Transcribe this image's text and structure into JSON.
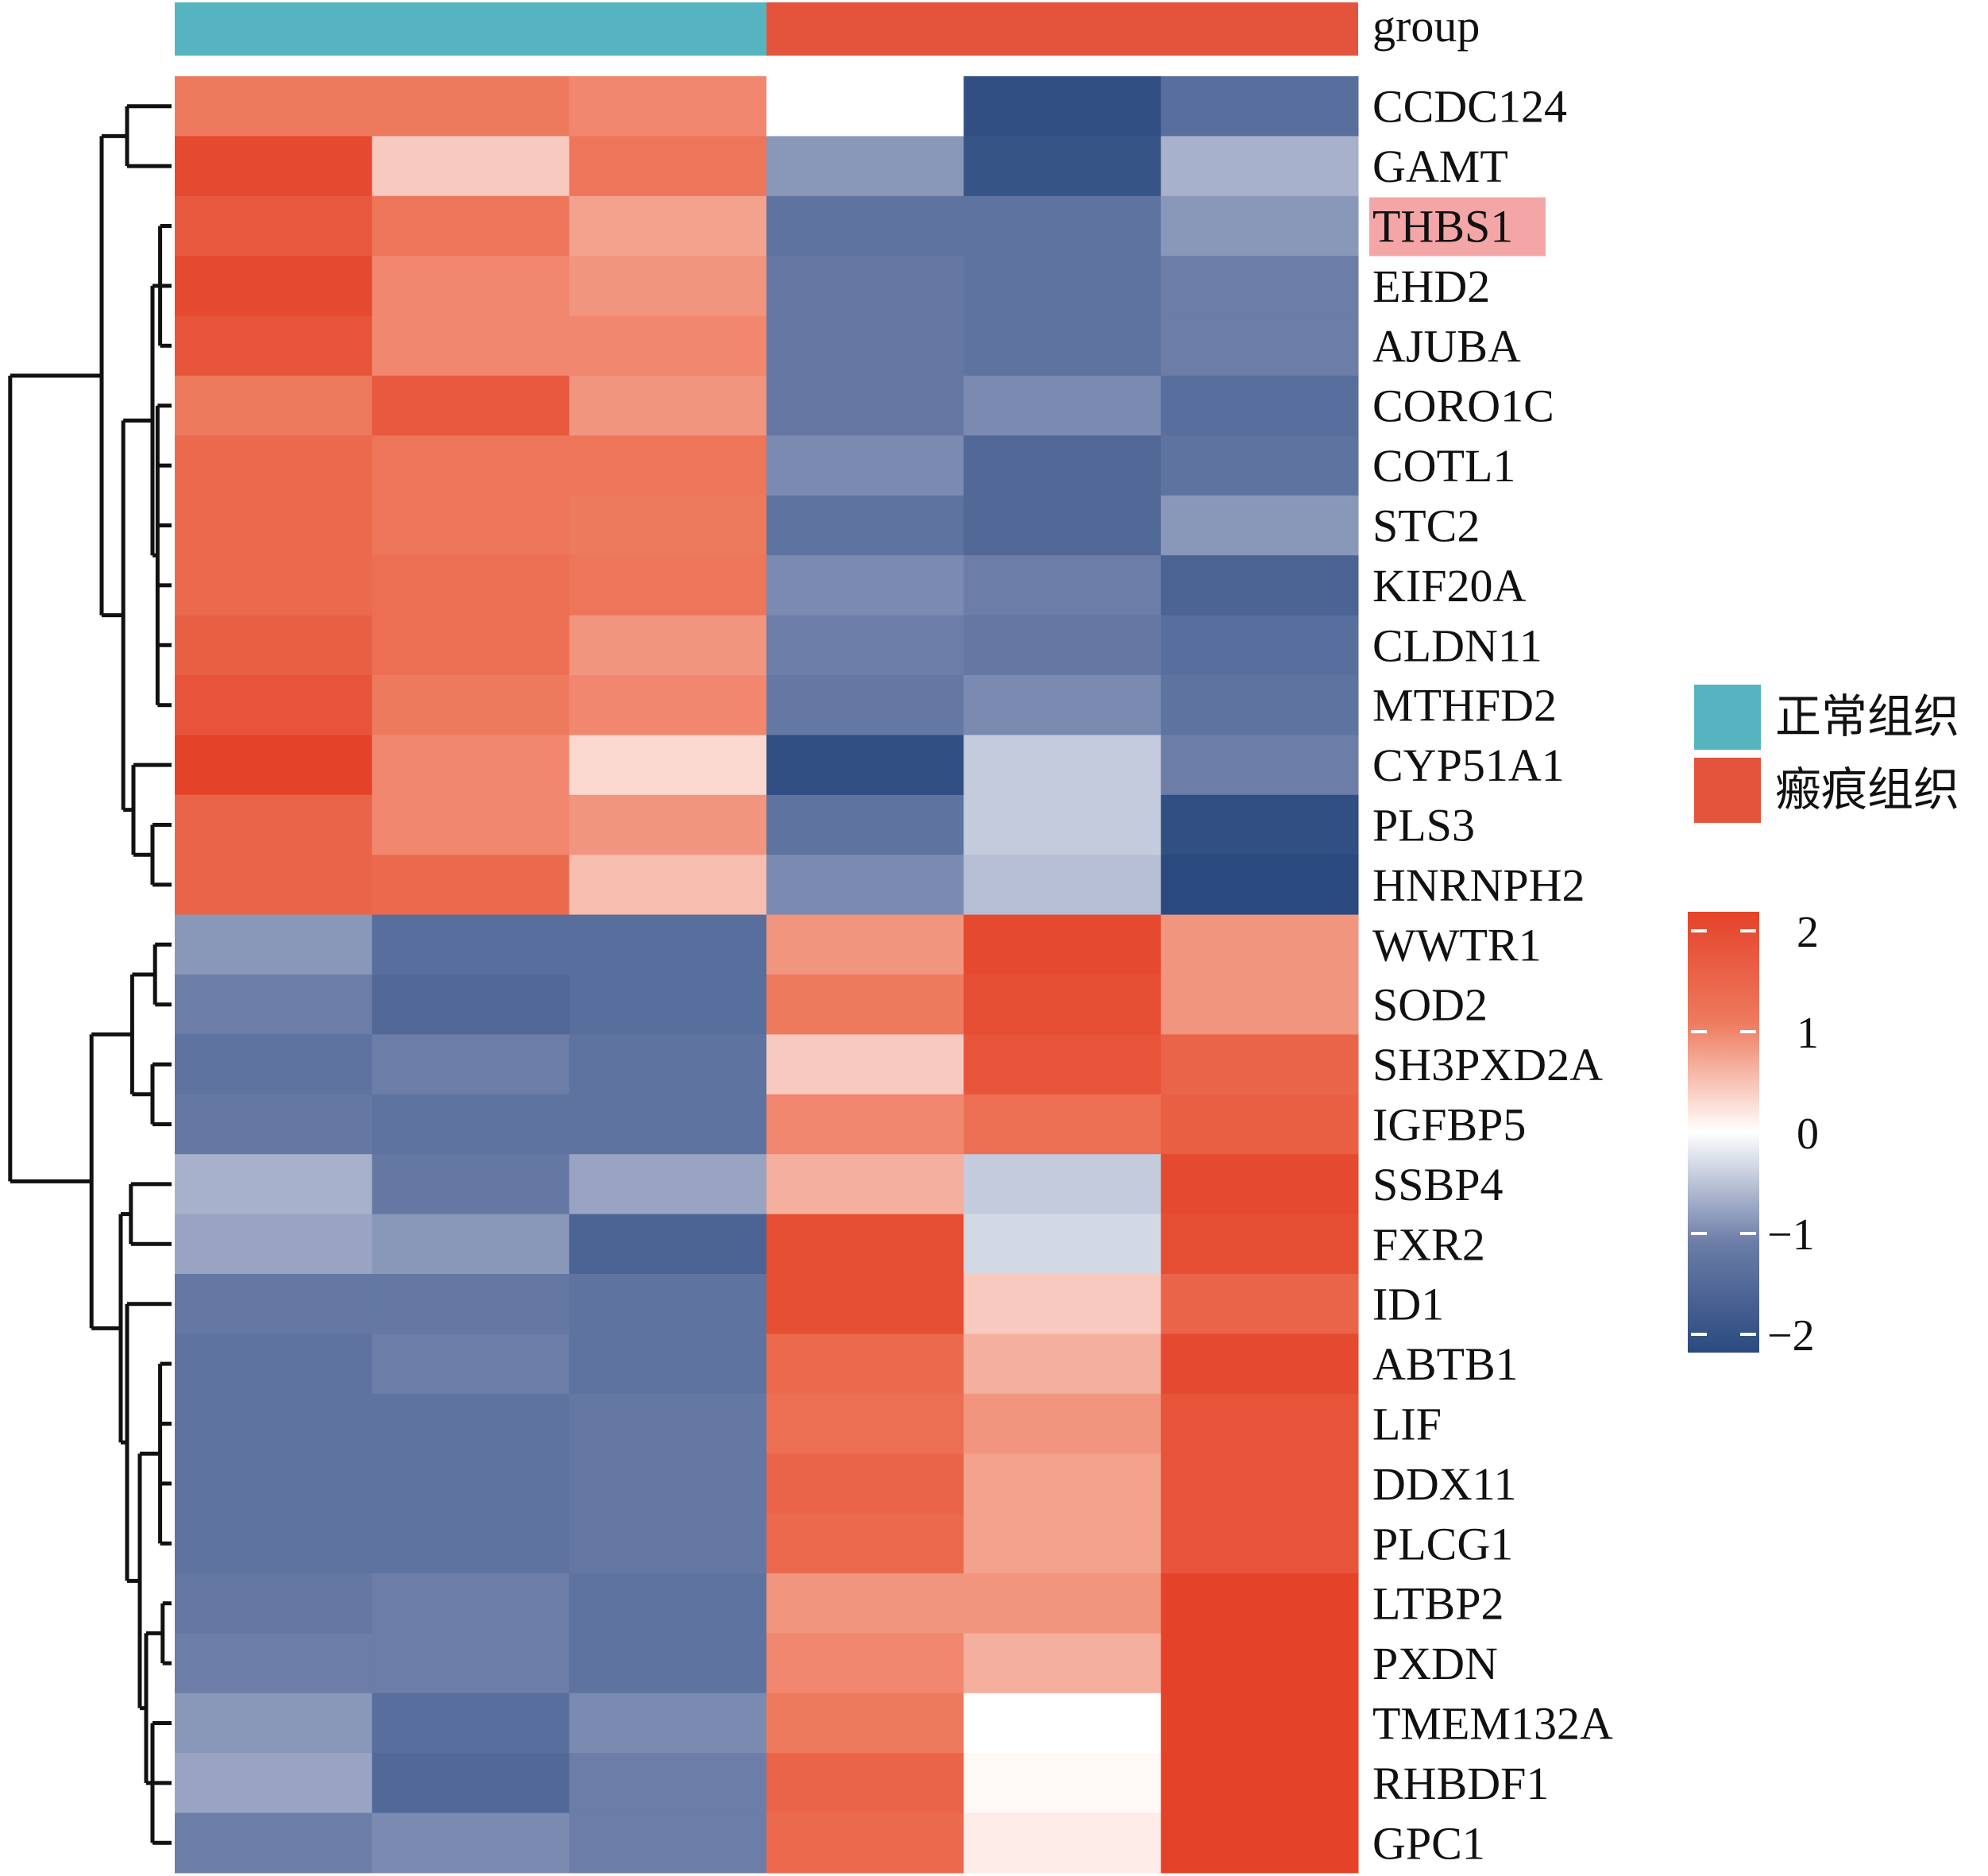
{
  "chart_data": {
    "type": "heatmap",
    "title": "",
    "annotation_label": "group",
    "groups": [
      {
        "name": "正常组织",
        "color": "#56B4C1",
        "samples": 3
      },
      {
        "name": "瘢痕组织",
        "color": "#E4533C",
        "samples": 3
      }
    ],
    "highlighted_gene": "THBS1",
    "highlight_color": "#F4A6A6",
    "color_scale": {
      "min": -2,
      "max": 2,
      "low": "#2A4A7F",
      "mid": "#FFFFFF",
      "high": "#E4432A",
      "ticks": [
        2,
        1,
        0,
        -1,
        -2
      ],
      "tick_labels": [
        "2",
        "1",
        "0",
        "−1",
        "−2"
      ]
    },
    "genes": [
      "CCDC124",
      "GAMT",
      "THBS1",
      "EHD2",
      "AJUBA",
      "CORO1C",
      "COTL1",
      "STC2",
      "KIF20A",
      "CLDN11",
      "MTHFD2",
      "CYP51A1",
      "PLS3",
      "HNRNPH2",
      "WWTR1",
      "SOD2",
      "SH3PXD2A",
      "IGFBP5",
      "SSBP4",
      "FXR2",
      "ID1",
      "ABTB1",
      "LIF",
      "DDX11",
      "PLCG1",
      "LTBP2",
      "PXDN",
      "TMEM132A",
      "RHBDF1",
      "GPC1"
    ],
    "values": [
      [
        1.0,
        1.0,
        0.9,
        0.0,
        -1.9,
        -1.3
      ],
      [
        1.9,
        0.4,
        1.1,
        -0.8,
        -1.8,
        -0.6
      ],
      [
        1.6,
        1.1,
        0.7,
        -1.2,
        -1.2,
        -0.8
      ],
      [
        1.9,
        0.9,
        0.8,
        -1.1,
        -1.2,
        -1.0
      ],
      [
        1.7,
        0.9,
        0.9,
        -1.1,
        -1.2,
        -1.0
      ],
      [
        1.0,
        1.6,
        0.8,
        -1.1,
        -0.9,
        -1.3
      ],
      [
        1.3,
        1.1,
        1.1,
        -0.9,
        -1.4,
        -1.2
      ],
      [
        1.3,
        1.1,
        1.0,
        -1.2,
        -1.4,
        -0.8
      ],
      [
        1.3,
        1.2,
        1.1,
        -0.9,
        -1.0,
        -1.5
      ],
      [
        1.5,
        1.2,
        0.8,
        -1.0,
        -1.1,
        -1.3
      ],
      [
        1.7,
        1.0,
        0.9,
        -1.1,
        -0.9,
        -1.2
      ],
      [
        2.0,
        0.9,
        0.3,
        -1.9,
        -0.4,
        -1.0
      ],
      [
        1.4,
        0.9,
        0.8,
        -1.2,
        -0.4,
        -1.9
      ],
      [
        1.4,
        1.3,
        0.5,
        -0.9,
        -0.5,
        -2.0
      ],
      [
        -0.8,
        -1.3,
        -1.3,
        0.8,
        1.9,
        0.8
      ],
      [
        -1.0,
        -1.4,
        -1.3,
        1.0,
        1.8,
        0.8
      ],
      [
        -1.2,
        -1.0,
        -1.2,
        0.4,
        1.7,
        1.4
      ],
      [
        -1.1,
        -1.2,
        -1.2,
        0.9,
        1.2,
        1.5
      ],
      [
        -0.6,
        -1.1,
        -0.7,
        0.6,
        -0.4,
        1.9
      ],
      [
        -0.7,
        -0.8,
        -1.5,
        1.8,
        -0.3,
        1.8
      ],
      [
        -1.1,
        -1.1,
        -1.2,
        1.8,
        0.4,
        1.4
      ],
      [
        -1.2,
        -1.0,
        -1.2,
        1.3,
        0.6,
        1.9
      ],
      [
        -1.2,
        -1.2,
        -1.1,
        1.2,
        0.8,
        1.7
      ],
      [
        -1.2,
        -1.2,
        -1.1,
        1.4,
        0.7,
        1.7
      ],
      [
        -1.2,
        -1.2,
        -1.1,
        1.3,
        0.7,
        1.7
      ],
      [
        -1.1,
        -1.0,
        -1.2,
        0.8,
        0.8,
        2.0
      ],
      [
        -1.0,
        -1.0,
        -1.2,
        0.9,
        0.6,
        2.0
      ],
      [
        -0.8,
        -1.3,
        -0.9,
        1.0,
        0.0,
        2.0
      ],
      [
        -0.7,
        -1.4,
        -1.0,
        1.4,
        0.05,
        2.0
      ],
      [
        -1.0,
        -0.9,
        -1.0,
        1.3,
        0.15,
        2.0
      ]
    ]
  }
}
